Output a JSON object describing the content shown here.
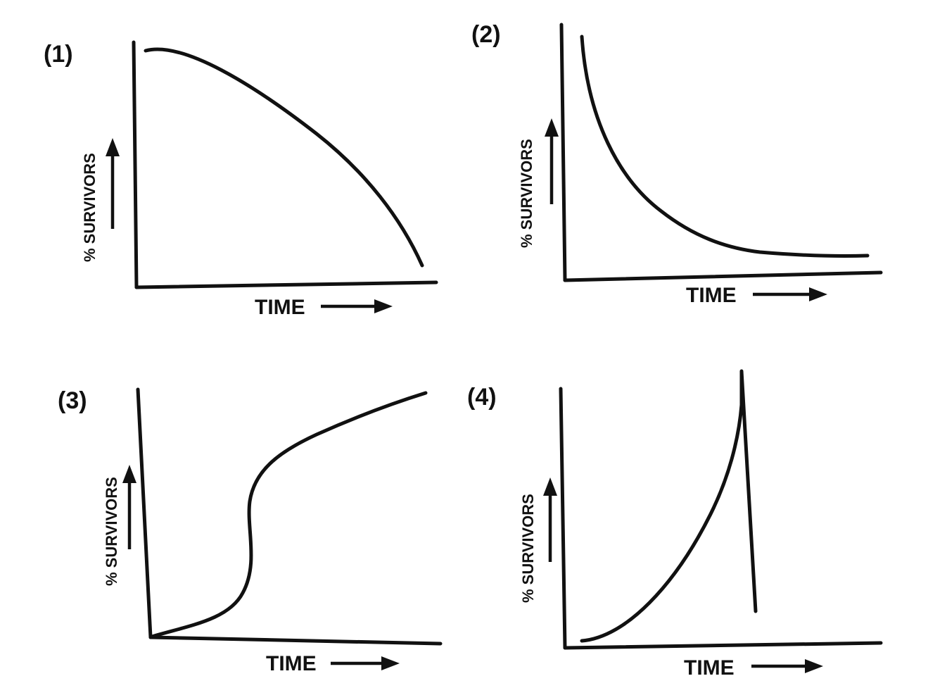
{
  "panels": [
    {
      "label": "(1)",
      "y_axis_label": "% SURVIVORS",
      "x_axis_label": "TIME"
    },
    {
      "label": "(2)",
      "y_axis_label": "% SURVIVORS",
      "x_axis_label": "TIME"
    },
    {
      "label": "(3)",
      "y_axis_label": "% SURVIVORS",
      "x_axis_label": "TIME"
    },
    {
      "label": "(4)",
      "y_axis_label": "% SURVIVORS",
      "x_axis_label": "TIME"
    }
  ]
}
